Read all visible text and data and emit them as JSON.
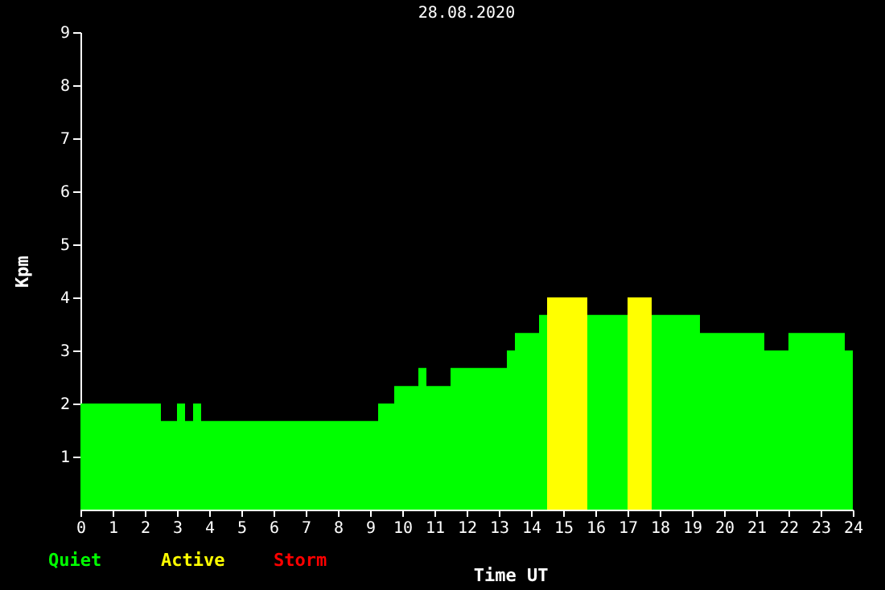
{
  "chart_data": {
    "type": "area",
    "title": "28.08.2020",
    "xlabel": "Time UT",
    "ylabel": "Kpm",
    "series": [
      {
        "name": "Quiet",
        "color": "#00ff00",
        "x": [
          0,
          2.5,
          2.5,
          3,
          3,
          3.25,
          3.25,
          3.5,
          3.5,
          3.75,
          3.75,
          9.25,
          9.25,
          9.75,
          9.75,
          10.5,
          10.5,
          10.75,
          10.75,
          11.5,
          11.5,
          13.25,
          13.25,
          13.5,
          13.5,
          14.25,
          14.25,
          14.5,
          15,
          15.75,
          17,
          17.5,
          17.75,
          19.25,
          19.25,
          21.25,
          21.25,
          22,
          22,
          23.75,
          23.75,
          24
        ],
        "values": [
          2.0,
          2.0,
          1.67,
          1.67,
          2.0,
          2.0,
          1.67,
          1.67,
          2.0,
          2.0,
          1.67,
          1.67,
          2.0,
          2.0,
          2.33,
          2.33,
          2.67,
          2.67,
          2.33,
          2.33,
          2.67,
          2.67,
          3.0,
          3.0,
          3.33,
          3.33,
          3.67,
          3.67,
          null,
          3.67,
          3.67,
          null,
          3.67,
          3.67,
          3.33,
          3.33,
          3.0,
          3.0,
          3.33,
          3.33,
          3.0,
          3.0
        ]
      },
      {
        "name": "Active",
        "color": "#ffff00",
        "x": [
          14.5,
          15.75,
          16.5,
          17,
          17.75
        ],
        "values": [
          4.0,
          4.0,
          null,
          4.0,
          4.0
        ]
      },
      {
        "name": "Storm",
        "color": "#ff0000"
      }
    ],
    "xlim": [
      0,
      24
    ],
    "xticks": [
      0,
      1,
      2,
      3,
      4,
      5,
      6,
      7,
      8,
      9,
      10,
      11,
      12,
      13,
      14,
      15,
      16,
      17,
      18,
      19,
      20,
      21,
      22,
      23,
      24
    ],
    "ylim": [
      0,
      9
    ],
    "yticks": [
      1,
      2,
      3,
      4,
      5,
      6,
      7,
      8,
      9
    ],
    "grid": false,
    "legend": "bottom left"
  }
}
